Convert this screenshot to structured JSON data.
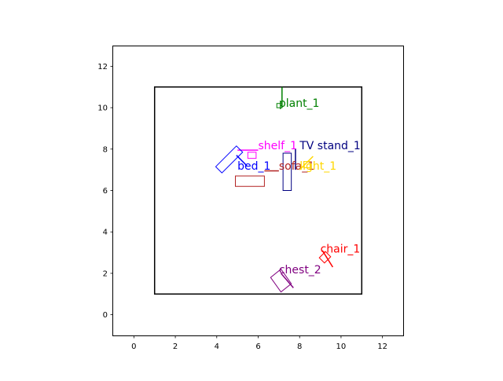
{
  "chart_data": {
    "type": "floor-plan",
    "xlim": [
      -1,
      13
    ],
    "ylim": [
      -1,
      13
    ],
    "x_ticks": [
      0,
      2,
      4,
      6,
      8,
      10,
      12
    ],
    "y_ticks": [
      0,
      2,
      4,
      6,
      8,
      10,
      12
    ],
    "x_tick_labels": [
      "0",
      "2",
      "4",
      "6",
      "8",
      "10",
      "12"
    ],
    "y_tick_labels": [
      "0",
      "2",
      "4",
      "6",
      "8",
      "10",
      "12"
    ],
    "room": {
      "x_min": 1,
      "y_min": 1,
      "x_max": 11,
      "y_max": 11,
      "color": "#000000"
    },
    "objects": [
      {
        "name": "plant_1",
        "color": "#008000",
        "rect": [
          [
            6.9,
            10.0
          ],
          [
            7.15,
            10.0
          ],
          [
            7.15,
            10.2
          ],
          [
            6.9,
            10.2
          ]
        ],
        "line": [
          [
            7.15,
            10.0
          ],
          [
            7.15,
            11.0
          ]
        ],
        "label_pos": [
          7.0,
          10.05
        ]
      },
      {
        "name": "shelf_1",
        "color": "#ff00ff",
        "rect": [
          [
            5.5,
            7.55
          ],
          [
            5.9,
            7.55
          ],
          [
            5.9,
            7.85
          ],
          [
            5.5,
            7.85
          ]
        ],
        "line": [
          [
            5.0,
            7.95
          ],
          [
            6.0,
            7.95
          ]
        ],
        "label_pos": [
          6.0,
          8.0
        ]
      },
      {
        "name": "TV stand_1",
        "color": "#000080",
        "rect": [
          [
            7.2,
            6.0
          ],
          [
            7.6,
            6.0
          ],
          [
            7.6,
            7.8
          ],
          [
            7.2,
            7.8
          ]
        ],
        "line": [
          [
            7.8,
            7.0
          ],
          [
            7.8,
            8.0
          ]
        ],
        "label_pos": [
          8.0,
          8.0
        ]
      },
      {
        "name": "bed_1",
        "color": "#0000ff",
        "rect": [
          [
            4.25,
            6.85
          ],
          [
            3.95,
            7.15
          ],
          [
            4.95,
            8.15
          ],
          [
            5.25,
            7.85
          ]
        ],
        "line": [
          [
            4.95,
            7.7
          ],
          [
            5.45,
            7.2
          ]
        ],
        "label_pos": [
          5.0,
          7.0
        ]
      },
      {
        "name": "sofa_1",
        "color": "#b22222",
        "rect": [
          [
            4.9,
            6.2
          ],
          [
            6.3,
            6.2
          ],
          [
            6.3,
            6.7
          ],
          [
            4.9,
            6.7
          ]
        ],
        "line": [
          [
            6.3,
            6.95
          ],
          [
            7.0,
            6.95
          ]
        ],
        "label_pos": [
          7.0,
          7.0
        ]
      },
      {
        "name": "light_1",
        "color": "#ffd700",
        "rect": [
          [
            8.2,
            7.1
          ],
          [
            8.5,
            7.1
          ],
          [
            8.5,
            7.4
          ],
          [
            8.2,
            7.4
          ]
        ],
        "line": [
          [
            8.0,
            7.0
          ],
          [
            8.65,
            7.65
          ]
        ],
        "label_pos": [
          8.0,
          7.0
        ]
      },
      {
        "name": "chair_1",
        "color": "#ff0000",
        "rect": [
          [
            8.95,
            2.75
          ],
          [
            9.2,
            2.5
          ],
          [
            9.5,
            2.8
          ],
          [
            9.25,
            3.05
          ]
        ],
        "line": [
          [
            9.1,
            3.1
          ],
          [
            9.6,
            2.3
          ]
        ],
        "label_pos": [
          9.0,
          3.0
        ]
      },
      {
        "name": "chest_2",
        "color": "#800080",
        "rect": [
          [
            6.6,
            1.8
          ],
          [
            7.1,
            1.1
          ],
          [
            7.6,
            1.5
          ],
          [
            7.1,
            2.2
          ]
        ],
        "line": [
          [
            7.1,
            2.0
          ],
          [
            7.7,
            1.3
          ]
        ],
        "label_pos": [
          7.0,
          2.0
        ]
      }
    ]
  }
}
